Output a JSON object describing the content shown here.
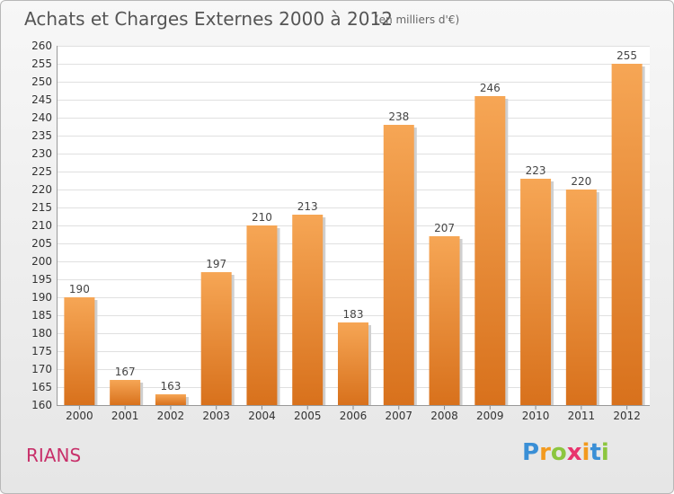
{
  "chart_data": {
    "type": "bar",
    "title": "Achats et Charges Externes 2000 à 2012",
    "subtitle": "(en milliers d'€)",
    "categories": [
      "2000",
      "2001",
      "2002",
      "2003",
      "2004",
      "2005",
      "2006",
      "2007",
      "2008",
      "2009",
      "2010",
      "2011",
      "2012"
    ],
    "values": [
      190,
      167,
      163,
      197,
      210,
      213,
      183,
      238,
      207,
      246,
      223,
      220,
      255
    ],
    "ylim": [
      160,
      260
    ],
    "ytick_step": 5,
    "grid": true,
    "bar_color": "#f0953f",
    "xlabel": "",
    "ylabel": ""
  },
  "place_name": "RIANS",
  "logo": {
    "letters": [
      "P",
      "r",
      "o",
      "x",
      "i",
      "t",
      "i"
    ],
    "colors": [
      "#3a8fd6",
      "#f39a1e",
      "#8cc63f",
      "#e8336d",
      "#f39a1e",
      "#3a8fd6",
      "#8cc63f"
    ]
  }
}
